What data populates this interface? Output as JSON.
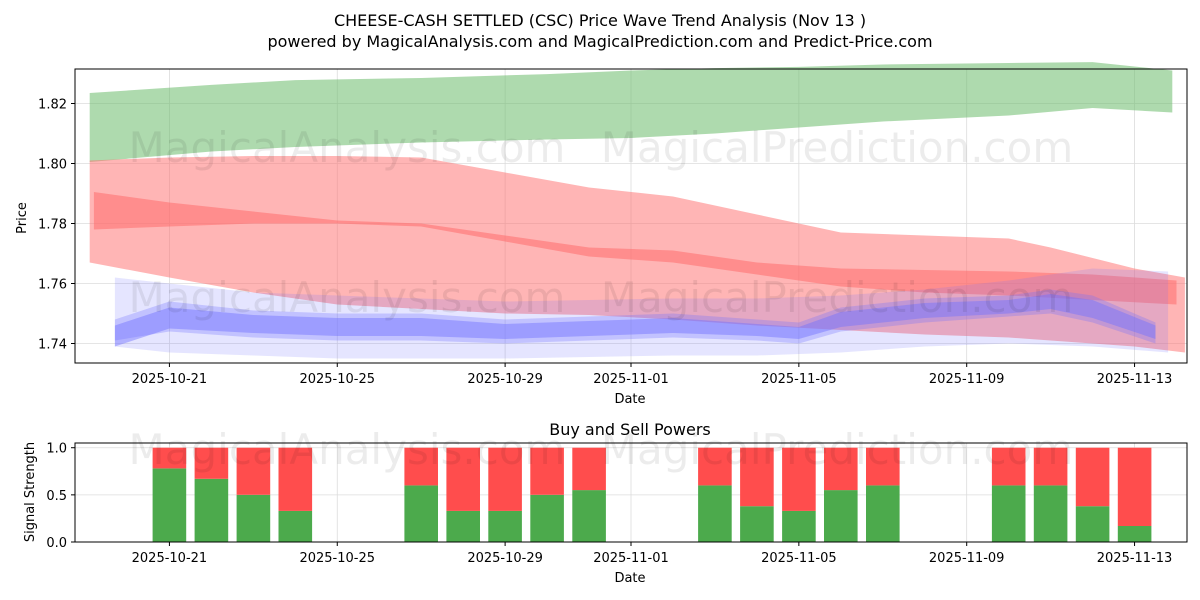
{
  "colors": {
    "green_band": "#6cbb6c",
    "red_band": "#ff6b6b",
    "blue_band": "#7070ff",
    "buy": "#4caa4c",
    "sell": "#ff4d4d",
    "grid": "#dcdcdc"
  },
  "header": {
    "title": "CHEESE-CASH SETTLED (CSC) Price Wave Trend Analysis (Nov 13 )",
    "subtitle": "powered by MagicalAnalysis.com and MagicalPrediction.com and Predict-Price.com"
  },
  "watermarks": [
    "MagicalAnalysis.com",
    "MagicalPrediction.com"
  ],
  "chart_data": [
    {
      "type": "area",
      "title": "",
      "xlabel": "Date",
      "ylabel": "Price",
      "ylim": [
        1.7335,
        1.8315
      ],
      "xlim": [
        -2.25,
        24.25
      ],
      "grid": true,
      "x_tick_labels": [
        "2025-10-21",
        "2025-10-25",
        "2025-10-29",
        "2025-11-01",
        "2025-11-05",
        "2025-11-09",
        "2025-11-13"
      ],
      "x_tick_days": [
        0,
        4,
        8,
        11,
        15,
        19,
        23
      ],
      "y_tick_values": [
        1.74,
        1.76,
        1.78,
        1.8,
        1.82
      ],
      "y_tick_labels": [
        "1.74",
        "1.76",
        "1.78",
        "1.80",
        "1.82"
      ],
      "series": [
        {
          "name": "green-wave-band",
          "color": "green",
          "x": [
            -1.9,
            1,
            3,
            6,
            9,
            11,
            13,
            15,
            17,
            20,
            22,
            23.9
          ],
          "upper": [
            1.8235,
            1.8262,
            1.8278,
            1.8285,
            1.8298,
            1.831,
            1.8318,
            1.8322,
            1.833,
            1.8335,
            1.8338,
            1.831
          ],
          "lower": [
            1.8005,
            1.804,
            1.8055,
            1.807,
            1.808,
            1.8085,
            1.81,
            1.812,
            1.814,
            1.816,
            1.8185,
            1.817
          ]
        },
        {
          "name": "red-wide-band",
          "color": "red",
          "x": [
            -1.9,
            0,
            2,
            4,
            6,
            8,
            10,
            12,
            14,
            16,
            18,
            20,
            21,
            22,
            23,
            24.2
          ],
          "upper": [
            1.801,
            1.802,
            1.8025,
            1.8025,
            1.802,
            1.797,
            1.792,
            1.789,
            1.783,
            1.777,
            1.776,
            1.775,
            1.772,
            1.7685,
            1.765,
            1.762
          ],
          "lower": [
            1.767,
            1.762,
            1.757,
            1.753,
            1.7515,
            1.75,
            1.7495,
            1.748,
            1.746,
            1.7445,
            1.743,
            1.742,
            1.741,
            1.74,
            1.739,
            1.737
          ]
        },
        {
          "name": "red-core-band",
          "color": "red",
          "x": [
            -1.8,
            0,
            2,
            4,
            6,
            8,
            10,
            12,
            14,
            16,
            18,
            20,
            22,
            24
          ],
          "upper": [
            1.7905,
            1.787,
            1.784,
            1.781,
            1.78,
            1.776,
            1.772,
            1.771,
            1.767,
            1.765,
            1.7645,
            1.764,
            1.763,
            1.761
          ],
          "lower": [
            1.778,
            1.779,
            1.78,
            1.78,
            1.779,
            1.774,
            1.769,
            1.767,
            1.763,
            1.759,
            1.757,
            1.756,
            1.7545,
            1.753
          ]
        },
        {
          "name": "blue-outer-band",
          "color": "blue",
          "x": [
            -1.3,
            0,
            2,
            4,
            6,
            8,
            10,
            12,
            14,
            16,
            18,
            20,
            22,
            23.8
          ],
          "upper": [
            1.762,
            1.76,
            1.757,
            1.756,
            1.755,
            1.754,
            1.7545,
            1.755,
            1.755,
            1.756,
            1.758,
            1.761,
            1.765,
            1.764
          ],
          "lower": [
            1.739,
            1.737,
            1.736,
            1.735,
            1.735,
            1.735,
            1.7355,
            1.736,
            1.736,
            1.737,
            1.739,
            1.74,
            1.739,
            1.737
          ]
        },
        {
          "name": "blue-mid-band",
          "color": "blue",
          "x": [
            -1.3,
            0,
            2,
            4,
            6,
            8,
            10,
            12,
            14,
            15,
            16,
            18,
            20,
            21,
            22,
            23.5
          ],
          "upper": [
            1.748,
            1.754,
            1.751,
            1.75,
            1.75,
            1.748,
            1.749,
            1.75,
            1.748,
            1.747,
            1.752,
            1.755,
            1.756,
            1.758,
            1.756,
            1.747
          ],
          "lower": [
            1.741,
            1.744,
            1.742,
            1.741,
            1.741,
            1.74,
            1.741,
            1.742,
            1.741,
            1.74,
            1.744,
            1.747,
            1.749,
            1.75,
            1.747,
            1.74
          ]
        },
        {
          "name": "blue-core-band",
          "color": "blue",
          "x": [
            -1.3,
            0,
            2,
            4,
            6,
            8,
            10,
            12,
            14,
            15,
            16,
            18,
            20,
            21,
            22,
            23.5
          ],
          "upper": [
            1.746,
            1.752,
            1.7495,
            1.7485,
            1.7485,
            1.7465,
            1.7475,
            1.7485,
            1.7465,
            1.7455,
            1.7505,
            1.7535,
            1.7545,
            1.7565,
            1.7545,
            1.746
          ],
          "lower": [
            1.739,
            1.745,
            1.7435,
            1.7425,
            1.7425,
            1.7415,
            1.7425,
            1.7435,
            1.7425,
            1.7415,
            1.7455,
            1.7485,
            1.75,
            1.7515,
            1.7485,
            1.7415
          ]
        }
      ]
    },
    {
      "type": "bar",
      "title": "Buy and Sell Powers",
      "xlabel": "Date",
      "ylabel": "Signal Strength",
      "ylim": [
        0,
        1.05
      ],
      "xlim": [
        -2.25,
        24.25
      ],
      "grid": true,
      "x_tick_labels": [
        "2025-10-21",
        "2025-10-25",
        "2025-10-29",
        "2025-11-01",
        "2025-11-05",
        "2025-11-09",
        "2025-11-13"
      ],
      "x_tick_days": [
        0,
        4,
        8,
        11,
        15,
        19,
        23
      ],
      "y_tick_values": [
        0,
        0.5,
        1.0
      ],
      "y_tick_labels": [
        "0.0",
        "0.5",
        "1.0"
      ],
      "x": [
        0,
        1,
        2,
        3,
        6,
        7,
        8,
        9,
        10,
        13,
        14,
        15,
        16,
        17,
        20,
        21,
        22,
        23
      ],
      "series": [
        {
          "name": "Buy",
          "color": "buy",
          "values": [
            0.78,
            0.67,
            0.5,
            0.33,
            0.6,
            0.33,
            0.33,
            0.5,
            0.55,
            0.6,
            0.38,
            0.33,
            0.55,
            0.6,
            0.6,
            0.6,
            0.38,
            0.17
          ]
        },
        {
          "name": "Sell",
          "color": "sell",
          "values": [
            0.22,
            0.33,
            0.5,
            0.67,
            0.4,
            0.67,
            0.67,
            0.5,
            0.45,
            0.4,
            0.62,
            0.67,
            0.45,
            0.4,
            0.4,
            0.4,
            0.62,
            0.83
          ]
        }
      ]
    }
  ]
}
